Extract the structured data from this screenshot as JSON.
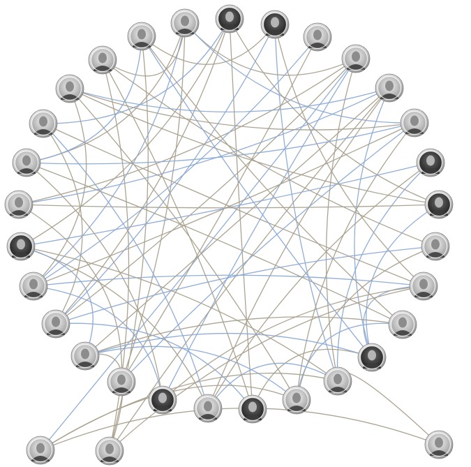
{
  "diagram": {
    "type": "network-graph",
    "layout": "circular",
    "node_kind": "portrait-photo",
    "edge_colors": {
      "tan": "#a89f8c",
      "blue": "#8aa9d6"
    },
    "node_colors": {
      "ring": "#bdbdbd",
      "rim": "#ffffff",
      "photo_light": "#d9d9d9",
      "photo_dark": "#2a2a2a"
    },
    "node_count": 32,
    "edges": [
      {
        "from": 0,
        "to": 4,
        "color": "tan"
      },
      {
        "from": 0,
        "to": 6,
        "color": "blue"
      },
      {
        "from": 0,
        "to": 18,
        "color": "tan"
      },
      {
        "from": 0,
        "to": 21,
        "color": "blue"
      },
      {
        "from": 0,
        "to": 24,
        "color": "tan"
      },
      {
        "from": 0,
        "to": 27,
        "color": "tan"
      },
      {
        "from": 1,
        "to": 8,
        "color": "tan"
      },
      {
        "from": 1,
        "to": 20,
        "color": "tan"
      },
      {
        "from": 1,
        "to": 22,
        "color": "tan"
      },
      {
        "from": 1,
        "to": 25,
        "color": "blue"
      },
      {
        "from": 1,
        "to": 15,
        "color": "tan"
      },
      {
        "from": 2,
        "to": 10,
        "color": "tan"
      },
      {
        "from": 2,
        "to": 13,
        "color": "blue"
      },
      {
        "from": 2,
        "to": 20,
        "color": "blue"
      },
      {
        "from": 2,
        "to": 28,
        "color": "tan"
      },
      {
        "from": 4,
        "to": 13,
        "color": "tan"
      },
      {
        "from": 4,
        "to": 17,
        "color": "blue"
      },
      {
        "from": 4,
        "to": 20,
        "color": "tan"
      },
      {
        "from": 4,
        "to": 23,
        "color": "tan"
      },
      {
        "from": 4,
        "to": 29,
        "color": "blue"
      },
      {
        "from": 5,
        "to": 12,
        "color": "blue"
      },
      {
        "from": 5,
        "to": 16,
        "color": "tan"
      },
      {
        "from": 5,
        "to": 19,
        "color": "tan"
      },
      {
        "from": 5,
        "to": 23,
        "color": "blue"
      },
      {
        "from": 5,
        "to": 26,
        "color": "blue"
      },
      {
        "from": 5,
        "to": 30,
        "color": "tan"
      },
      {
        "from": 6,
        "to": 14,
        "color": "tan"
      },
      {
        "from": 6,
        "to": 18,
        "color": "blue"
      },
      {
        "from": 6,
        "to": 21,
        "color": "tan"
      },
      {
        "from": 6,
        "to": 24,
        "color": "blue"
      },
      {
        "from": 7,
        "to": 13,
        "color": "blue"
      },
      {
        "from": 7,
        "to": 16,
        "color": "tan"
      },
      {
        "from": 7,
        "to": 22,
        "color": "blue"
      },
      {
        "from": 8,
        "to": 12,
        "color": "blue"
      },
      {
        "from": 8,
        "to": 23,
        "color": "tan"
      },
      {
        "from": 8,
        "to": 26,
        "color": "tan"
      },
      {
        "from": 9,
        "to": 20,
        "color": "blue"
      },
      {
        "from": 9,
        "to": 14,
        "color": "tan"
      },
      {
        "from": 9,
        "to": 27,
        "color": "tan"
      },
      {
        "from": 10,
        "to": 12,
        "color": "blue"
      },
      {
        "from": 10,
        "to": 17,
        "color": "tan"
      },
      {
        "from": 10,
        "to": 21,
        "color": "blue"
      },
      {
        "from": 10,
        "to": 25,
        "color": "tan"
      },
      {
        "from": 11,
        "to": 14,
        "color": "blue"
      },
      {
        "from": 11,
        "to": 19,
        "color": "tan"
      },
      {
        "from": 11,
        "to": 24,
        "color": "tan"
      },
      {
        "from": 12,
        "to": 15,
        "color": "tan"
      },
      {
        "from": 12,
        "to": 19,
        "color": "blue"
      },
      {
        "from": 12,
        "to": 28,
        "color": "blue"
      },
      {
        "from": 13,
        "to": 16,
        "color": "blue"
      },
      {
        "from": 13,
        "to": 22,
        "color": "tan"
      },
      {
        "from": 13,
        "to": 29,
        "color": "tan"
      },
      {
        "from": 14,
        "to": 19,
        "color": "blue"
      },
      {
        "from": 14,
        "to": 26,
        "color": "tan"
      },
      {
        "from": 15,
        "to": 20,
        "color": "blue"
      },
      {
        "from": 15,
        "to": 27,
        "color": "tan"
      },
      {
        "from": 16,
        "to": 22,
        "color": "tan"
      },
      {
        "from": 16,
        "to": 25,
        "color": "blue"
      },
      {
        "from": 17,
        "to": 21,
        "color": "blue"
      },
      {
        "from": 17,
        "to": 24,
        "color": "tan"
      },
      {
        "from": 18,
        "to": 23,
        "color": "tan"
      },
      {
        "from": 19,
        "to": 22,
        "color": "blue"
      },
      {
        "from": 20,
        "to": 25,
        "color": "tan"
      },
      {
        "from": 21,
        "to": 26,
        "color": "tan"
      },
      {
        "from": 3,
        "to": 18,
        "color": "tan"
      },
      {
        "from": 3,
        "to": 21,
        "color": "blue"
      },
      {
        "from": 27,
        "to": 30,
        "color": "tan"
      },
      {
        "from": 28,
        "to": 30,
        "color": "tan"
      },
      {
        "from": 29,
        "to": 31,
        "color": "tan"
      },
      {
        "from": 10,
        "to": 30,
        "color": "tan"
      },
      {
        "from": 13,
        "to": 31,
        "color": "tan"
      },
      {
        "from": 14,
        "to": 29,
        "color": "tan"
      },
      {
        "from": 11,
        "to": 28,
        "color": "tan"
      },
      {
        "from": 19,
        "to": 30,
        "color": "tan"
      },
      {
        "from": 6,
        "to": 26,
        "color": "tan"
      },
      {
        "from": 24,
        "to": 28,
        "color": "blue"
      }
    ]
  }
}
